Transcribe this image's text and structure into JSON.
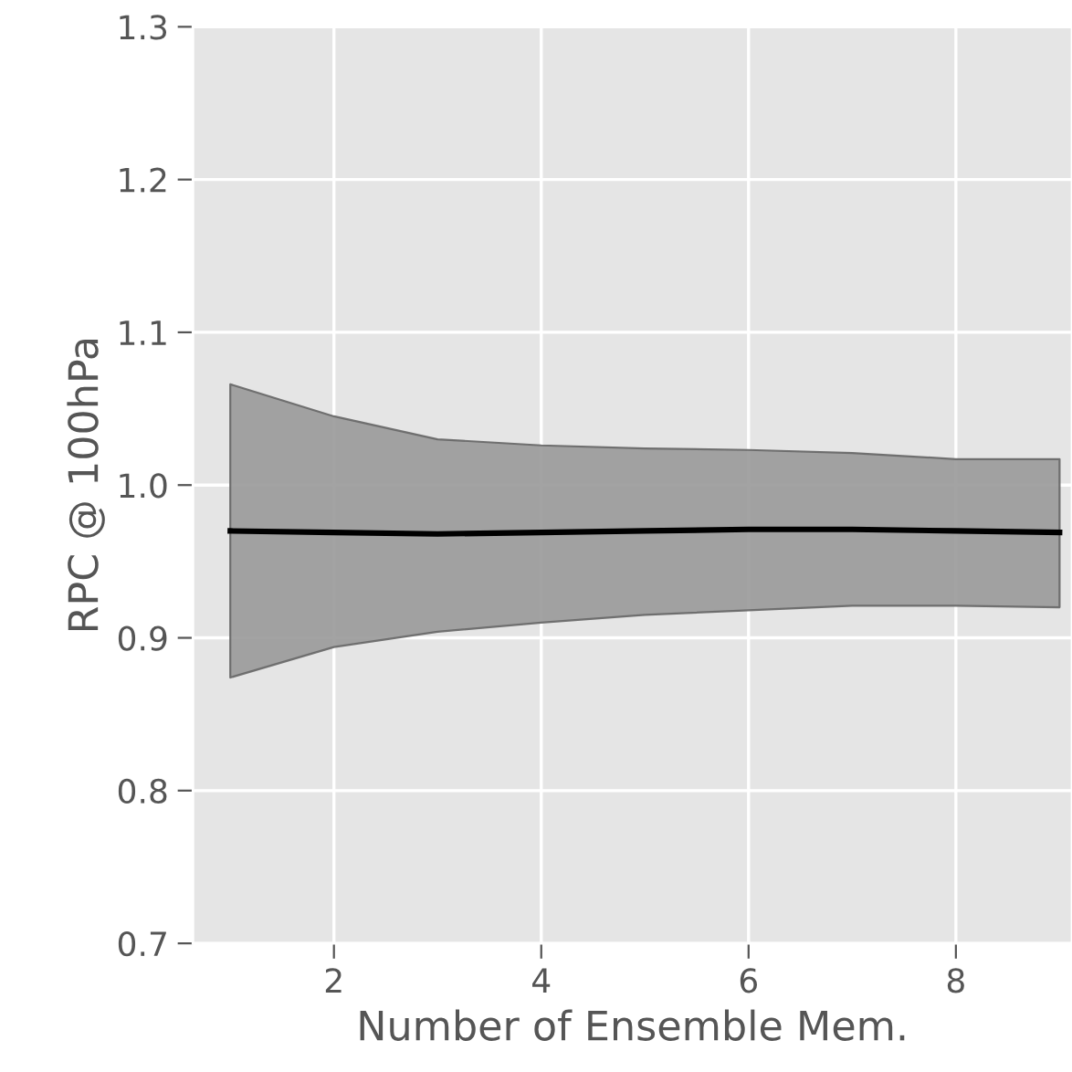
{
  "chart_data": {
    "type": "line",
    "xlabel": "Number of Ensemble Mem.",
    "ylabel": "RPC @ 100hPa",
    "x": [
      1,
      2,
      3,
      4,
      5,
      6,
      7,
      8,
      9
    ],
    "series": [
      {
        "color": "#000000",
        "values": [
          0.97,
          0.969,
          0.968,
          0.969,
          0.97,
          0.971,
          0.971,
          0.97,
          0.969
        ],
        "lower": [
          0.874,
          0.894,
          0.904,
          0.91,
          0.915,
          0.918,
          0.921,
          0.921,
          0.92
        ],
        "upper": [
          1.066,
          1.045,
          1.03,
          1.026,
          1.024,
          1.023,
          1.021,
          1.017,
          1.017
        ]
      }
    ],
    "xlim": [
      0.64,
      9.12
    ],
    "ylim": [
      0.7,
      1.3
    ],
    "xticks": [
      2,
      4,
      6,
      8
    ],
    "yticks": [
      0.7,
      0.8,
      0.9,
      {
        "value": 1.0,
        "label": "1.0"
      },
      1.1,
      1.2,
      1.3
    ],
    "grid": true,
    "marker": "none",
    "line_style": "solid",
    "legend": false
  }
}
